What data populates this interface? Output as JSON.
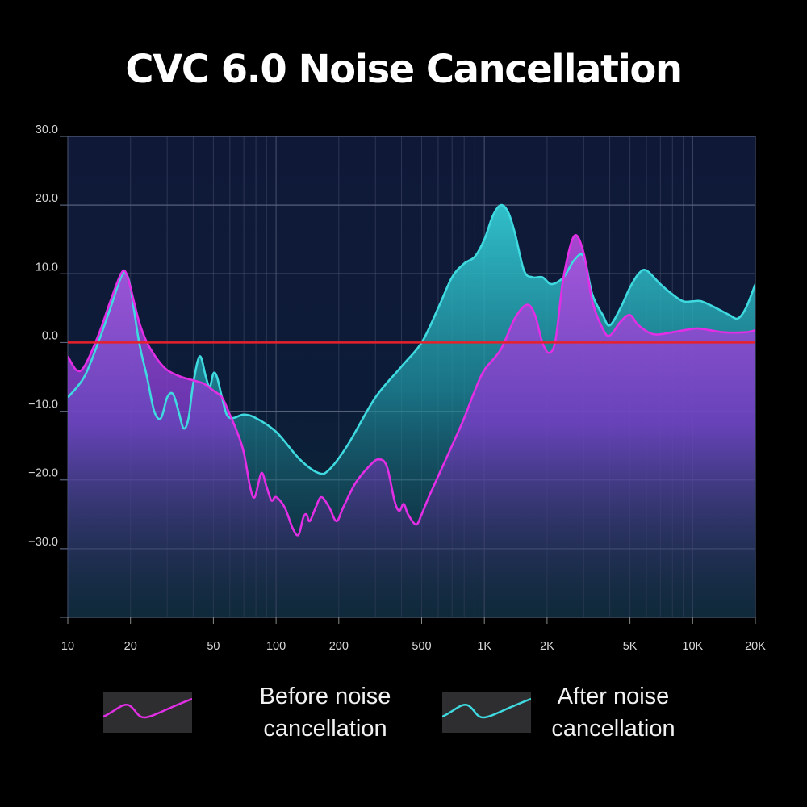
{
  "colors": {
    "background": "#000000",
    "before": "#e22ee4",
    "after": "#3fd9e0",
    "baseline": "#e8202a",
    "grid": "#3f4a66"
  },
  "chart_data": {
    "type": "area",
    "title": "CVC 6.0 Noise Cancellation",
    "xlabel": "",
    "ylabel": "",
    "x_scale": "log",
    "xlim": [
      10,
      20000
    ],
    "ylim": [
      -40,
      30
    ],
    "grid": true,
    "legend_position": "bottom",
    "x_tick_labels": [
      {
        "value": 10,
        "label": "10"
      },
      {
        "value": 20,
        "label": "20"
      },
      {
        "value": 50,
        "label": "50"
      },
      {
        "value": 100,
        "label": "100"
      },
      {
        "value": 200,
        "label": "200"
      },
      {
        "value": 500,
        "label": "500"
      },
      {
        "value": 1000,
        "label": "1K"
      },
      {
        "value": 2000,
        "label": "2K"
      },
      {
        "value": 5000,
        "label": "5K"
      },
      {
        "value": 10000,
        "label": "10K"
      },
      {
        "value": 20000,
        "label": "20K"
      }
    ],
    "y_tick_labels": [
      {
        "value": 30,
        "label": "30.0"
      },
      {
        "value": 20,
        "label": "20.0"
      },
      {
        "value": 10,
        "label": "10.0"
      },
      {
        "value": 0,
        "label": "0.0"
      },
      {
        "value": -10,
        "label": "−10.0"
      },
      {
        "value": -20,
        "label": "−20.0"
      },
      {
        "value": -30,
        "label": "−30.0"
      }
    ],
    "reference_line": 0,
    "series": [
      {
        "key": "before",
        "name": "Before noise cancellation",
        "points": [
          [
            10,
            -2
          ],
          [
            11,
            -4
          ],
          [
            12,
            -3.5
          ],
          [
            14,
            1
          ],
          [
            16,
            6
          ],
          [
            18,
            10
          ],
          [
            19,
            10.2
          ],
          [
            20,
            8
          ],
          [
            22,
            3
          ],
          [
            24,
            0
          ],
          [
            27,
            -2.5
          ],
          [
            30,
            -4
          ],
          [
            35,
            -5
          ],
          [
            40,
            -5.5
          ],
          [
            45,
            -6
          ],
          [
            50,
            -7
          ],
          [
            55,
            -8
          ],
          [
            60,
            -10.5
          ],
          [
            65,
            -13
          ],
          [
            70,
            -16
          ],
          [
            75,
            -21
          ],
          [
            79,
            -22.5
          ],
          [
            85,
            -19
          ],
          [
            90,
            -21
          ],
          [
            95,
            -23
          ],
          [
            100,
            -22.5
          ],
          [
            110,
            -24
          ],
          [
            120,
            -27
          ],
          [
            128,
            -28
          ],
          [
            135,
            -25.5
          ],
          [
            140,
            -25
          ],
          [
            145,
            -26
          ],
          [
            155,
            -24
          ],
          [
            165,
            -22.5
          ],
          [
            180,
            -24
          ],
          [
            195,
            -26
          ],
          [
            210,
            -24
          ],
          [
            240,
            -20.5
          ],
          [
            280,
            -18
          ],
          [
            310,
            -17
          ],
          [
            340,
            -18
          ],
          [
            370,
            -23
          ],
          [
            390,
            -24.5
          ],
          [
            410,
            -23.5
          ],
          [
            430,
            -25
          ],
          [
            470,
            -26.5
          ],
          [
            500,
            -25
          ],
          [
            550,
            -22
          ],
          [
            700,
            -15
          ],
          [
            800,
            -11
          ],
          [
            900,
            -7
          ],
          [
            1000,
            -4
          ],
          [
            1200,
            -1
          ],
          [
            1400,
            3.5
          ],
          [
            1600,
            5.5
          ],
          [
            1750,
            4
          ],
          [
            1900,
            0
          ],
          [
            2050,
            -1.5
          ],
          [
            2200,
            0.5
          ],
          [
            2400,
            9.5
          ],
          [
            2700,
            15.5
          ],
          [
            3000,
            13
          ],
          [
            3300,
            6
          ],
          [
            3700,
            2
          ],
          [
            4000,
            1
          ],
          [
            4500,
            3
          ],
          [
            5000,
            4
          ],
          [
            5500,
            2.5
          ],
          [
            6500,
            1.2
          ],
          [
            8000,
            1.5
          ],
          [
            10000,
            2
          ],
          [
            11000,
            2
          ],
          [
            14000,
            1.5
          ],
          [
            18000,
            1.5
          ],
          [
            20000,
            1.8
          ]
        ]
      },
      {
        "key": "after",
        "name": "After noise cancellation",
        "points": [
          [
            10,
            -8
          ],
          [
            12,
            -5
          ],
          [
            14,
            0
          ],
          [
            16,
            5
          ],
          [
            18,
            9.5
          ],
          [
            19,
            10
          ],
          [
            20,
            8
          ],
          [
            22,
            0
          ],
          [
            24,
            -5
          ],
          [
            26,
            -10
          ],
          [
            28,
            -11
          ],
          [
            30,
            -8
          ],
          [
            32,
            -7.5
          ],
          [
            34,
            -10
          ],
          [
            36,
            -12.5
          ],
          [
            38,
            -11
          ],
          [
            40,
            -6
          ],
          [
            43,
            -2
          ],
          [
            46,
            -5
          ],
          [
            48,
            -6.5
          ],
          [
            50,
            -4.5
          ],
          [
            52,
            -5
          ],
          [
            55,
            -8
          ],
          [
            58,
            -10.5
          ],
          [
            62,
            -11
          ],
          [
            70,
            -10.5
          ],
          [
            80,
            -11
          ],
          [
            100,
            -13
          ],
          [
            130,
            -17
          ],
          [
            160,
            -19
          ],
          [
            180,
            -18.5
          ],
          [
            220,
            -15
          ],
          [
            300,
            -8
          ],
          [
            400,
            -3.5
          ],
          [
            500,
            0
          ],
          [
            600,
            5
          ],
          [
            700,
            9.5
          ],
          [
            800,
            11.5
          ],
          [
            900,
            12.5
          ],
          [
            1000,
            15
          ],
          [
            1100,
            18.5
          ],
          [
            1200,
            20
          ],
          [
            1300,
            19
          ],
          [
            1400,
            16
          ],
          [
            1550,
            10.5
          ],
          [
            1700,
            9.5
          ],
          [
            1900,
            9.5
          ],
          [
            2100,
            8.5
          ],
          [
            2400,
            9.5
          ],
          [
            2700,
            12
          ],
          [
            3000,
            12.5
          ],
          [
            3300,
            7
          ],
          [
            3700,
            4
          ],
          [
            4000,
            2.5
          ],
          [
            4500,
            5
          ],
          [
            5000,
            8
          ],
          [
            5500,
            10
          ],
          [
            6000,
            10.5
          ],
          [
            7000,
            8.5
          ],
          [
            8000,
            7
          ],
          [
            9000,
            6
          ],
          [
            10000,
            6
          ],
          [
            11000,
            6
          ],
          [
            13000,
            5
          ],
          [
            15000,
            4
          ],
          [
            16500,
            3.5
          ],
          [
            18000,
            5
          ],
          [
            20000,
            8.5
          ]
        ]
      }
    ]
  },
  "legend": [
    {
      "key": "before",
      "line1": "Before noise",
      "line2": "cancellation"
    },
    {
      "key": "after",
      "line1": "After noise",
      "line2": "cancellation"
    }
  ]
}
